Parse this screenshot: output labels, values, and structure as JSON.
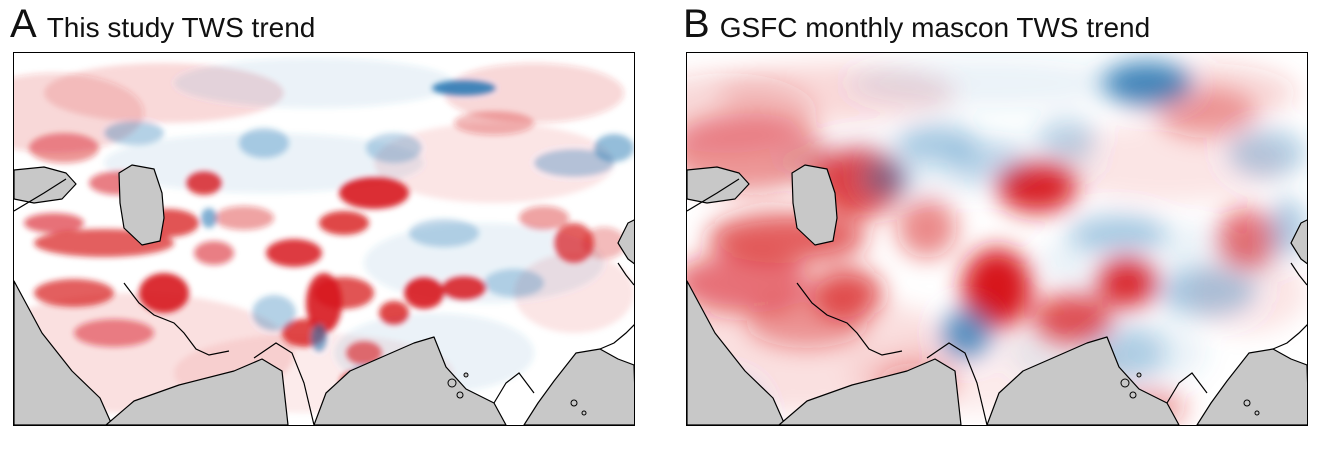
{
  "panels": [
    {
      "letter": "A",
      "title": "This study TWS trend"
    },
    {
      "letter": "B",
      "title": "GSFC monthly mascon TWS trend"
    }
  ],
  "colors": {
    "positive": "#d7191c",
    "negative": "#2c7bb6",
    "land_mask": "#c8c8c8",
    "coastline": "#000000",
    "background": "#ffffff"
  },
  "icons": [
    "sea-mask",
    "coastline"
  ]
}
